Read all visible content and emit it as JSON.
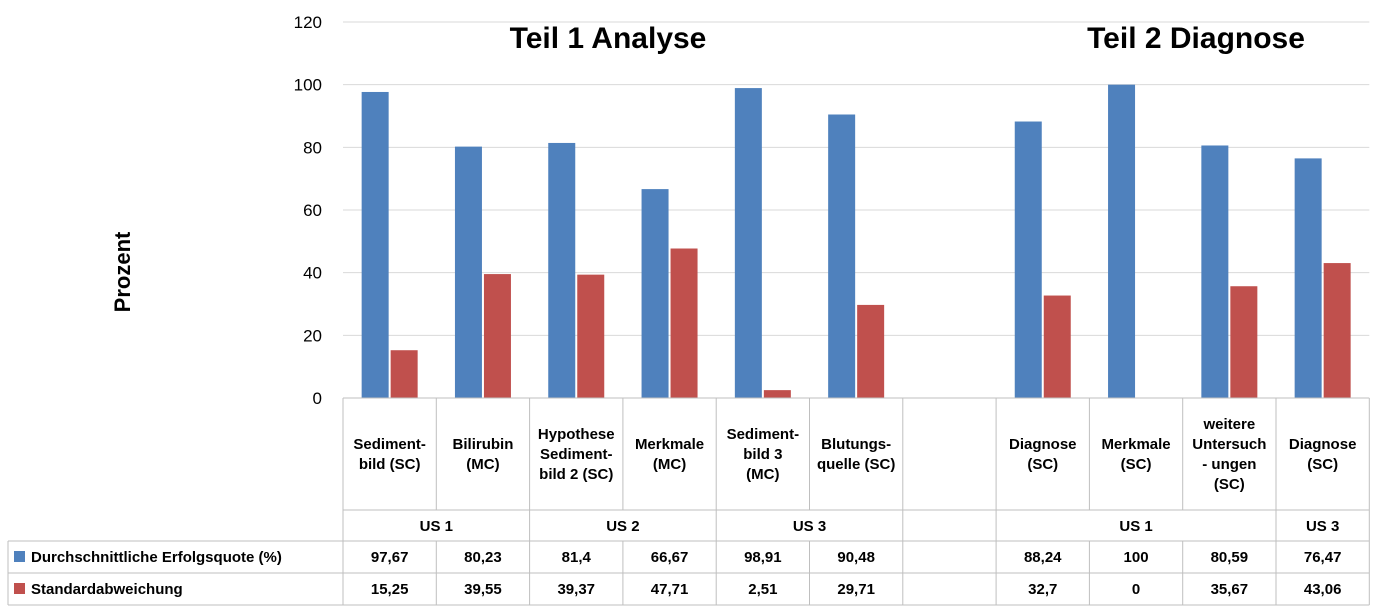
{
  "chart_data": {
    "type": "bar",
    "ylabel": "Prozent",
    "ylim": [
      0,
      120
    ],
    "yticks": [
      "0",
      "20",
      "40",
      "60",
      "80",
      "100",
      "120"
    ],
    "sections": [
      "Teil 1 Analyse",
      "Teil 2 Diagnose"
    ],
    "categories": [
      [
        "Sediment-",
        "bild (SC)"
      ],
      [
        "Bilirubin",
        "(MC)"
      ],
      [
        "Hypothese",
        "Sediment-",
        "bild 2 (SC)"
      ],
      [
        "Merkmale",
        "(MC)"
      ],
      [
        "Sediment-",
        "bild 3",
        "(MC)"
      ],
      [
        "Blutungs-",
        "quelle (SC)"
      ],
      [],
      [
        "Diagnose",
        "(SC)"
      ],
      [
        "Merkmale",
        "(SC)"
      ],
      [
        "weitere",
        "Untersuch",
        "- ungen",
        "(SC)"
      ],
      [
        "Diagnose",
        "(SC)"
      ]
    ],
    "groups": [
      {
        "label": "US 1",
        "span": [
          0,
          1
        ]
      },
      {
        "label": "US 2",
        "span": [
          2,
          3
        ]
      },
      {
        "label": "US 3",
        "span": [
          4,
          5
        ]
      },
      {
        "label": "US 1",
        "span": [
          7,
          9
        ]
      },
      {
        "label": "US 3",
        "span": [
          10,
          10
        ]
      }
    ],
    "series": [
      {
        "name": "Durchschnittliche Erfolgsquote (%)",
        "color": "#4F81BD",
        "values": [
          97.67,
          80.23,
          81.4,
          66.67,
          98.91,
          90.48,
          null,
          88.24,
          100,
          80.59,
          76.47
        ],
        "labels": [
          "97,67",
          "80,23",
          "81,4",
          "66,67",
          "98,91",
          "90,48",
          "",
          "88,24",
          "100",
          "80,59",
          "76,47"
        ]
      },
      {
        "name": "Standardabweichung",
        "color": "#C0504D",
        "values": [
          15.25,
          39.55,
          39.37,
          47.71,
          2.51,
          29.71,
          null,
          32.7,
          0,
          35.67,
          43.06
        ],
        "labels": [
          "15,25",
          "39,55",
          "39,37",
          "47,71",
          "2,51",
          "29,71",
          "",
          "32,7",
          "0",
          "35,67",
          "43,06"
        ]
      }
    ],
    "grid": true,
    "legend": "data-table"
  }
}
